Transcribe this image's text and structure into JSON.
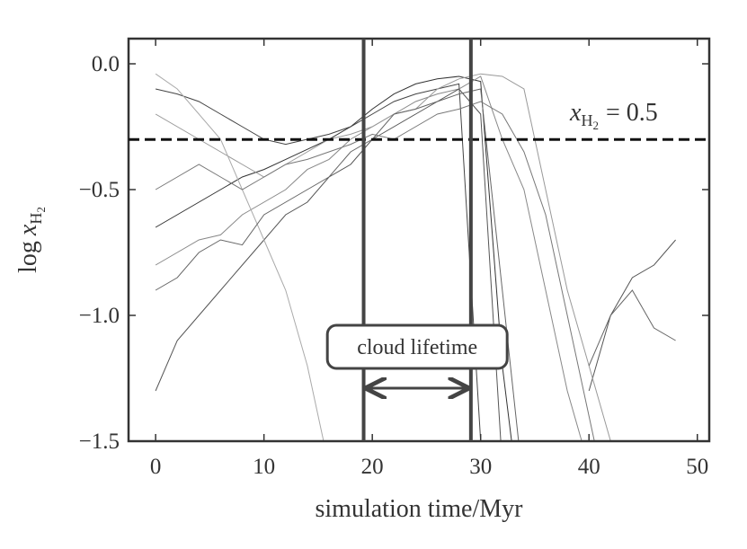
{
  "chart_data": {
    "type": "line",
    "xlabel": "simulation time/Myr",
    "ylabel": {
      "prefix": "log",
      "var": "x",
      "sub": "H",
      "subsub": "2"
    },
    "threshold_label": {
      "var": "x",
      "sub": "H",
      "subsub": "2",
      "rest": "= 0.5"
    },
    "range_label": "cloud lifetime",
    "threshold": -0.301,
    "cloud_start": 19.2,
    "cloud_end": 29.1,
    "xlim": [
      -2.5,
      51.1
    ],
    "ylim": [
      -1.5,
      0.1
    ],
    "xticks": [
      0,
      10,
      20,
      30,
      40,
      50
    ],
    "yticks": [
      {
        "value": 0,
        "label": "0.0"
      },
      {
        "value": -0.5,
        "label": "−0.5"
      },
      {
        "value": -1,
        "label": "−1.0"
      },
      {
        "value": -1.5,
        "label": "−1.5"
      }
    ],
    "x": [
      0,
      2,
      4,
      6,
      8,
      10,
      12,
      14,
      16,
      18,
      20,
      22,
      24,
      26,
      28,
      30,
      32,
      34,
      36,
      38,
      40,
      42,
      44,
      46,
      48
    ],
    "series": [
      {
        "color": "#333333",
        "values": [
          -0.65,
          -0.6,
          -0.55,
          -0.5,
          -0.45,
          -0.42,
          -0.38,
          -0.34,
          -0.3,
          -0.25,
          -0.18,
          -0.12,
          -0.08,
          -0.06,
          -0.05,
          -0.07,
          -1.2,
          -1.9,
          null,
          null,
          null,
          null,
          null,
          null,
          null
        ]
      },
      {
        "color": "#444444",
        "values": [
          -0.1,
          -0.12,
          -0.15,
          -0.2,
          -0.25,
          -0.3,
          -0.32,
          -0.3,
          -0.28,
          -0.25,
          -0.2,
          -0.15,
          -0.12,
          -0.1,
          -0.08,
          -1.5,
          -2,
          null,
          null,
          null,
          null,
          null,
          null,
          null,
          null
        ]
      },
      {
        "color": "#888888",
        "values": [
          -0.8,
          -0.75,
          -0.7,
          -0.68,
          -0.6,
          -0.55,
          -0.5,
          -0.42,
          -0.38,
          -0.3,
          -0.25,
          -0.2,
          -0.15,
          -0.12,
          -0.1,
          -0.05,
          -0.3,
          -0.5,
          -0.9,
          -1.3,
          -1.6,
          null,
          null,
          null,
          null
        ]
      },
      {
        "color": "#555555",
        "values": [
          -1.3,
          -1.1,
          -1.0,
          -0.9,
          -0.8,
          -0.7,
          -0.6,
          -0.55,
          -0.45,
          -0.4,
          -0.3,
          -0.25,
          -0.2,
          -0.15,
          -0.1,
          -0.2,
          -1.6,
          null,
          null,
          null,
          -1.3,
          -1.0,
          -0.85,
          -0.8,
          -0.7
        ]
      },
      {
        "color": "#999999",
        "values": [
          -0.2,
          -0.25,
          -0.3,
          -0.35,
          -0.4,
          -0.45,
          -0.4,
          -0.35,
          -0.3,
          -0.28,
          -0.25,
          -0.2,
          -0.18,
          -0.1,
          -0.06,
          -0.04,
          -0.05,
          -0.1,
          -0.5,
          -0.9,
          -1.2,
          -1.5,
          -1.7,
          null,
          null
        ]
      },
      {
        "color": "#aaaaaa",
        "values": [
          -0.04,
          -0.1,
          -0.2,
          -0.3,
          -0.5,
          -0.7,
          -0.9,
          -1.2,
          -1.6,
          null,
          null,
          null,
          null,
          null,
          null,
          null,
          null,
          null,
          null,
          null,
          null,
          null,
          null,
          null,
          null
        ]
      },
      {
        "color": "#666666",
        "values": [
          -0.9,
          -0.85,
          -0.75,
          -0.7,
          -0.72,
          -0.6,
          -0.55,
          -0.5,
          -0.45,
          -0.35,
          -0.3,
          -0.2,
          -0.18,
          -0.15,
          -0.12,
          -0.1,
          -0.9,
          -1.7,
          null,
          null,
          -1.2,
          -1.0,
          -0.9,
          -1.05,
          -1.1
        ]
      },
      {
        "color": "#777777",
        "values": [
          -0.5,
          -0.45,
          -0.4,
          -0.45,
          -0.5,
          -0.45,
          -0.4,
          -0.38,
          -0.35,
          -0.32,
          -0.28,
          -0.3,
          -0.25,
          -0.2,
          -0.18,
          -0.15,
          -0.2,
          -0.35,
          -0.6,
          -1.0,
          -1.4,
          -1.8,
          null,
          null,
          null
        ]
      }
    ]
  }
}
